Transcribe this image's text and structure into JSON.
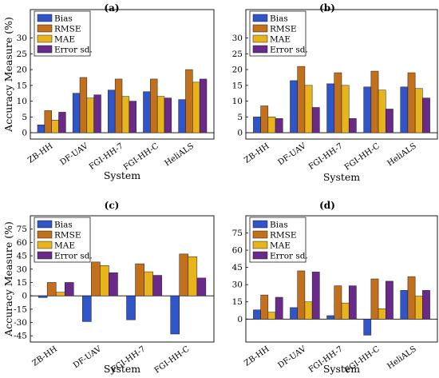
{
  "colors": {
    "Bias": "#2f55c8",
    "RMSE": "#c2701c",
    "MAE": "#e8b41c",
    "Error sd.": "#6a2a8a"
  },
  "chart_data": [
    {
      "id": "a",
      "type": "bar",
      "title": "(a)",
      "xlabel": "System",
      "ylabel": "Accuracy Measure (%)",
      "ylim": [
        -2,
        39
      ],
      "yticks": [
        0,
        5,
        10,
        15,
        20,
        25,
        30
      ],
      "categories": [
        "ZB-HH",
        "DF-UAV",
        "FGI-HH-7",
        "FGI-HH-C",
        "HeliALS"
      ],
      "series": [
        {
          "name": "Bias",
          "values": [
            2.5,
            12.5,
            13.5,
            13,
            10.5
          ]
        },
        {
          "name": "RMSE",
          "values": [
            7,
            17.5,
            17,
            17,
            20
          ]
        },
        {
          "name": "MAE",
          "values": [
            4,
            11,
            11.5,
            11.5,
            16
          ]
        },
        {
          "name": "Error sd.",
          "values": [
            6.5,
            12,
            10,
            11,
            17
          ]
        }
      ],
      "legend": "top-left"
    },
    {
      "id": "b",
      "type": "bar",
      "title": "(b)",
      "xlabel": "System",
      "ylabel": "",
      "ylim": [
        -2,
        39
      ],
      "yticks": [
        0,
        5,
        10,
        15,
        20,
        25,
        30
      ],
      "categories": [
        "ZB-HH",
        "DF-UAV",
        "FGI-HH-7",
        "FGI-HH-C",
        "HeliALS"
      ],
      "series": [
        {
          "name": "Bias",
          "values": [
            5,
            16.5,
            15.5,
            14.5,
            14.5
          ]
        },
        {
          "name": "RMSE",
          "values": [
            8.5,
            21,
            19,
            19.5,
            19
          ]
        },
        {
          "name": "MAE",
          "values": [
            5,
            15,
            15,
            13.5,
            14
          ]
        },
        {
          "name": "Error sd.",
          "values": [
            4.5,
            8,
            4.5,
            7.5,
            11
          ]
        }
      ],
      "legend": "top-left"
    },
    {
      "id": "c",
      "type": "bar",
      "title": "(c)",
      "xlabel": "System",
      "ylabel": "Accuracy Measure (%)",
      "ylim": [
        -52,
        90
      ],
      "yticks": [
        -45,
        -30,
        -15,
        0,
        15,
        30,
        45,
        60,
        75
      ],
      "categories": [
        "ZB-HH",
        "DF-UAV",
        "FGI-HH-7",
        "FGI-HH-C"
      ],
      "series": [
        {
          "name": "Bias",
          "values": [
            -2,
            -29,
            -27,
            -43
          ]
        },
        {
          "name": "RMSE",
          "values": [
            15,
            38,
            36,
            47
          ]
        },
        {
          "name": "MAE",
          "values": [
            4,
            34,
            27,
            44
          ]
        },
        {
          "name": "Error sd.",
          "values": [
            15,
            26,
            23,
            20
          ]
        }
      ],
      "legend": "top-left"
    },
    {
      "id": "d",
      "type": "bar",
      "title": "(d)",
      "xlabel": "System",
      "ylabel": "",
      "ylim": [
        -20,
        90
      ],
      "yticks": [
        0,
        15,
        30,
        45,
        60,
        75
      ],
      "categories": [
        "ZB-HH",
        "DF-UAV",
        "FGI-HH-7",
        "FGI-HH-C",
        "HeliALS"
      ],
      "series": [
        {
          "name": "Bias",
          "values": [
            8,
            10,
            3,
            -14,
            25
          ]
        },
        {
          "name": "RMSE",
          "values": [
            21,
            42,
            29,
            35,
            37
          ]
        },
        {
          "name": "MAE",
          "values": [
            6,
            15,
            14,
            9,
            20
          ]
        },
        {
          "name": "Error sd.",
          "values": [
            19,
            41,
            29,
            33,
            25
          ]
        }
      ],
      "legend": "top-left"
    }
  ]
}
